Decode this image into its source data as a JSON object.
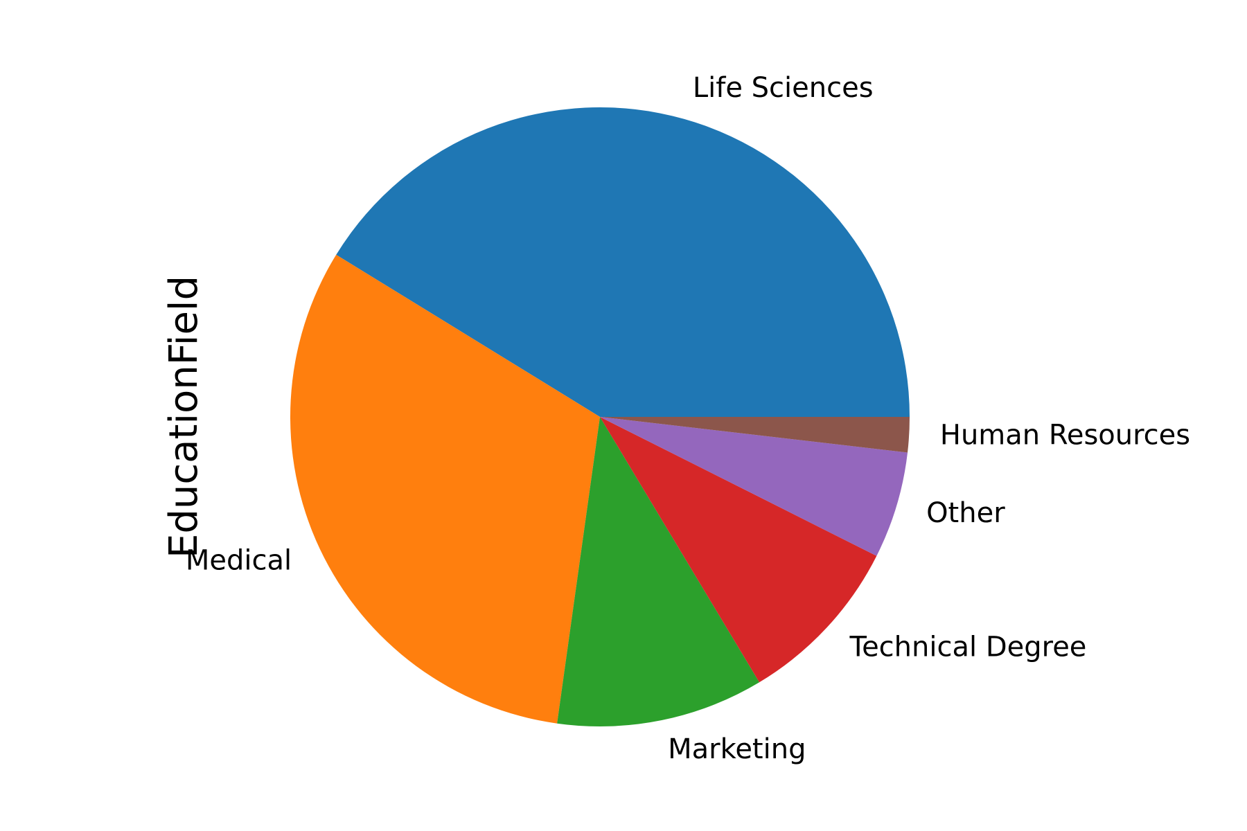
{
  "chart_data": {
    "type": "pie",
    "ylabel": "EducationField",
    "categories": [
      "Life Sciences",
      "Medical",
      "Marketing",
      "Technical Degree",
      "Other",
      "Human Resources"
    ],
    "values": [
      606,
      464,
      159,
      132,
      82,
      27
    ],
    "colors": [
      "#1f77b4",
      "#ff7f0e",
      "#2ca02c",
      "#d62728",
      "#9467bd",
      "#8c564b"
    ],
    "start_angle_deg": 0,
    "direction": "counterclockwise",
    "legend": "none"
  }
}
